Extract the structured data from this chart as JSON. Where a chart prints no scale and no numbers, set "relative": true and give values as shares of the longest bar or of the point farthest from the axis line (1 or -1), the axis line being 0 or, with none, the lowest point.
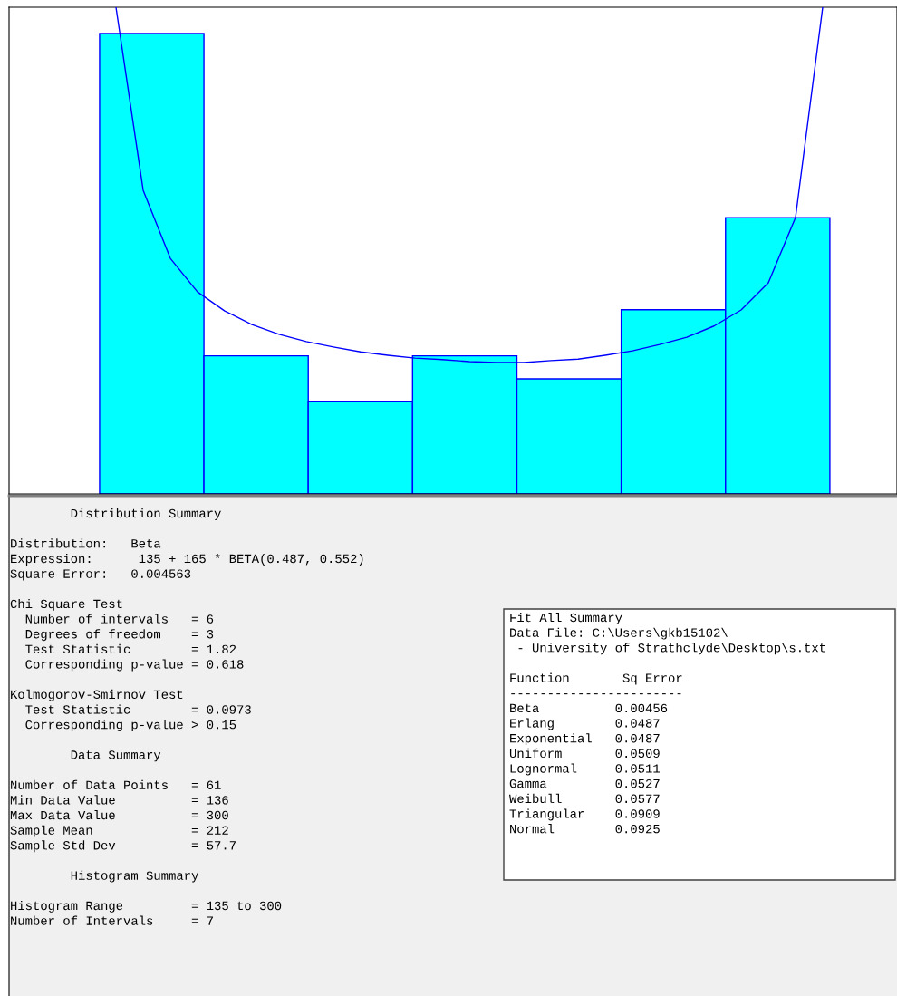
{
  "chart_data": [
    {
      "type": "bar",
      "relative": true,
      "categories": [
        null,
        null,
        null,
        null,
        null,
        null,
        null
      ],
      "values": [
        1,
        0.3,
        0.2,
        0.3,
        0.25,
        0.4,
        0.6
      ],
      "color": "#00ffff",
      "annotations": [
        "        Distribution Summary\n\nDistribution:   Beta\nExpression:      135 + 165 * BETA(0.487, 0.552)\nSquare Error:   0.004563\n\nChi Square Test\n  Number of intervals   = 6\n  Degrees of freedom    = 3\n  Test Statistic        = 1.82\n  Corresponding p-value = 0.618\n\nKolmogorov-Smirnov Test\n  Test Statistic        = 0.0973\n  Corresponding p-value > 0.15\n\n        Data Summary\n\nNumber of Data Points   = 61\nMin Data Value          = 136\nMax Data Value          = 300\nSample Mean             = 212\nSample Std Dev          = 57.7\n\n        Histogram Summary\n\nHistogram Range         = 135 to 300\nNumber of Intervals     = 7",
        "Fit All Summary\nData File: C:\\Users\\gkb15102\\\n - University of Strathclyde\\Desktop\\s.txt\n\nFunction       Sq Error\n-----------------------\nBeta          0.00456\nErlang        0.0487\nExponential   0.0487\nUniform       0.0509\nLognormal     0.0511\nGamma         0.0527\nWeibull       0.0577\nTriangular    0.0909\nNormal        0.0925"
      ]
    },
    {
      "type": "line",
      "relative": true,
      "categories": [
        null,
        null,
        null,
        null,
        null,
        null,
        null,
        null,
        null,
        null,
        null,
        null,
        null,
        null,
        null,
        null,
        null,
        null,
        null,
        null,
        null,
        null,
        null,
        null,
        null,
        null,
        null
      ],
      "series": [
        {
          "color": "#0000ff",
          "values": [
            1.0,
            0.624,
            0.484,
            0.415,
            0.376,
            0.348,
            0.328,
            0.313,
            0.302,
            0.292,
            0.285,
            0.279,
            0.276,
            0.272,
            0.27,
            0.27,
            0.274,
            0.277,
            0.285,
            0.294,
            0.307,
            0.322,
            0.345,
            0.378,
            0.434,
            0.568,
            1.0
          ]
        }
      ]
    }
  ]
}
